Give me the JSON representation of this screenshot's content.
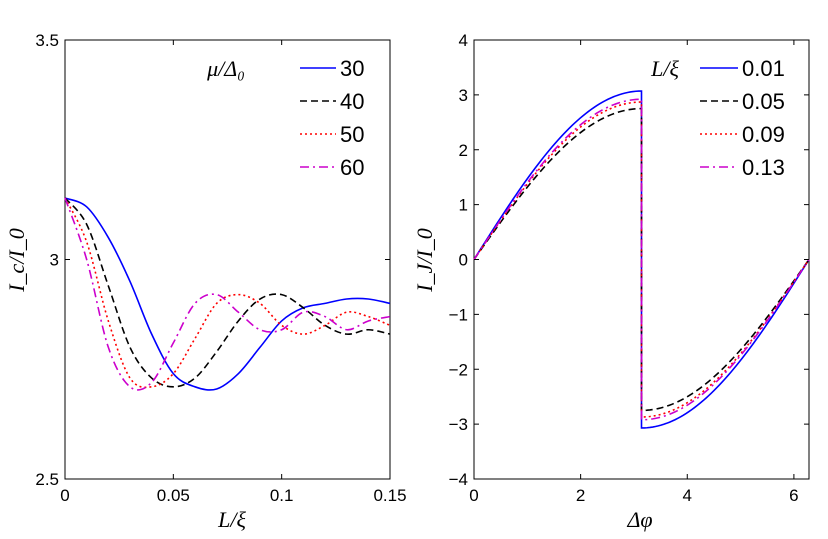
{
  "chart_data": [
    {
      "type": "line",
      "xlabel": "L/ξ",
      "ylabel": "I_c/I_0",
      "xlim": [
        0,
        0.15
      ],
      "ylim": [
        2.5,
        3.5
      ],
      "xticks": [
        0,
        0.05,
        0.1,
        0.15
      ],
      "xtick_labels": [
        "0",
        "0.05",
        "0.1",
        "0.15"
      ],
      "yticks": [
        2.5,
        3,
        3.5
      ],
      "ytick_labels": [
        "2.5",
        "3",
        "3.5"
      ],
      "legend_title": "μ/Δ₀",
      "legend_position": "top-right",
      "series": [
        {
          "name": "30",
          "color": "#0000ff",
          "dash": "solid",
          "x": [
            0,
            0.01,
            0.02,
            0.03,
            0.04,
            0.05,
            0.06,
            0.07,
            0.08,
            0.09,
            0.1,
            0.11,
            0.12,
            0.13,
            0.14,
            0.15
          ],
          "y": [
            3.14,
            3.12,
            3.05,
            2.95,
            2.83,
            2.74,
            2.71,
            2.705,
            2.74,
            2.8,
            2.86,
            2.89,
            2.9,
            2.91,
            2.91,
            2.9
          ]
        },
        {
          "name": "40",
          "color": "#000000",
          "dash": "dashed",
          "x": [
            0,
            0.01,
            0.02,
            0.03,
            0.04,
            0.05,
            0.06,
            0.07,
            0.08,
            0.09,
            0.1,
            0.11,
            0.12,
            0.13,
            0.14,
            0.15
          ],
          "y": [
            3.14,
            3.08,
            2.94,
            2.8,
            2.73,
            2.71,
            2.73,
            2.79,
            2.86,
            2.91,
            2.92,
            2.89,
            2.85,
            2.83,
            2.84,
            2.83
          ]
        },
        {
          "name": "50",
          "color": "#ff0000",
          "dash": "dotted",
          "x": [
            0,
            0.01,
            0.02,
            0.03,
            0.04,
            0.05,
            0.06,
            0.07,
            0.08,
            0.09,
            0.1,
            0.11,
            0.12,
            0.13,
            0.14,
            0.15
          ],
          "y": [
            3.14,
            3.04,
            2.86,
            2.73,
            2.71,
            2.74,
            2.82,
            2.9,
            2.92,
            2.9,
            2.85,
            2.83,
            2.85,
            2.88,
            2.87,
            2.85
          ]
        },
        {
          "name": "60",
          "color": "#cc00cc",
          "dash": "dashdot",
          "x": [
            0,
            0.01,
            0.02,
            0.03,
            0.04,
            0.05,
            0.06,
            0.07,
            0.08,
            0.09,
            0.1,
            0.11,
            0.12,
            0.13,
            0.14,
            0.15
          ],
          "y": [
            3.14,
            3.0,
            2.8,
            2.71,
            2.72,
            2.81,
            2.9,
            2.92,
            2.88,
            2.84,
            2.84,
            2.88,
            2.87,
            2.84,
            2.86,
            2.87
          ]
        }
      ]
    },
    {
      "type": "line",
      "xlabel": "Δφ",
      "ylabel": "I_J/I_0",
      "xlim": [
        0,
        6.2832
      ],
      "ylim": [
        -4,
        4
      ],
      "xticks": [
        0,
        2,
        4,
        6
      ],
      "xtick_labels": [
        "0",
        "2",
        "4",
        "6"
      ],
      "yticks": [
        -4,
        -3,
        -2,
        -1,
        0,
        1,
        2,
        3,
        4
      ],
      "ytick_labels": [
        "−4",
        "−3",
        "−2",
        "−1",
        "0",
        "1",
        "2",
        "3",
        "4"
      ],
      "legend_title": "L/ξ",
      "legend_position": "top-right",
      "series": [
        {
          "name": "0.01",
          "color": "#0000ff",
          "dash": "solid",
          "amplitude": 3.07
        },
        {
          "name": "0.05",
          "color": "#000000",
          "dash": "dashed",
          "amplitude": 2.75
        },
        {
          "name": "0.09",
          "color": "#ff0000",
          "dash": "dotted",
          "amplitude": 2.87
        },
        {
          "name": "0.13",
          "color": "#cc00cc",
          "dash": "dashdot",
          "amplitude": 2.92
        }
      ]
    }
  ]
}
